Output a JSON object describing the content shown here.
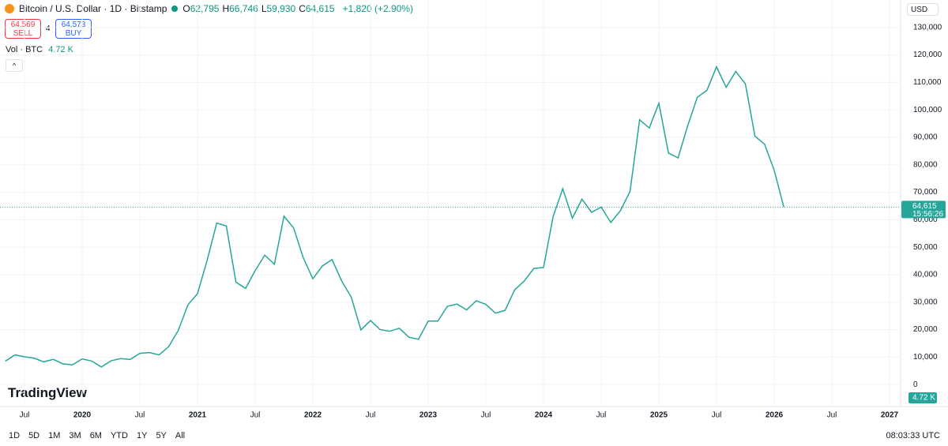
{
  "header": {
    "title": "Bitcoin / U.S. Dollar · 1D · Bitstamp",
    "ohlc": [
      {
        "label": "O",
        "value": "62,795"
      },
      {
        "label": "H",
        "value": "66,746"
      },
      {
        "label": "L",
        "value": "59,930"
      },
      {
        "label": "C",
        "value": "64,615"
      }
    ],
    "change": "+1,820 (+2.90%)",
    "sell": {
      "price": "64,569",
      "label": "SELL"
    },
    "spread": "4",
    "buy": {
      "price": "64,573",
      "label": "BUY"
    },
    "volume": {
      "label": "Vol · BTC",
      "value": "4.72 K"
    },
    "currency": "USD"
  },
  "logo": "TradingView",
  "chart_data": {
    "type": "line",
    "color": "#26a69a",
    "x": [
      "2019-05",
      "2019-06",
      "2019-07",
      "2019-08",
      "2019-09",
      "2019-10",
      "2019-11",
      "2019-12",
      "2020-01",
      "2020-02",
      "2020-03",
      "2020-04",
      "2020-05",
      "2020-06",
      "2020-07",
      "2020-08",
      "2020-09",
      "2020-10",
      "2020-11",
      "2020-12",
      "2021-01",
      "2021-02",
      "2021-03",
      "2021-04",
      "2021-05",
      "2021-06",
      "2021-07",
      "2021-08",
      "2021-09",
      "2021-10",
      "2021-11",
      "2021-12",
      "2022-01",
      "2022-02",
      "2022-03",
      "2022-04",
      "2022-05",
      "2022-06",
      "2022-07",
      "2022-08",
      "2022-09",
      "2022-10",
      "2022-11",
      "2022-12",
      "2023-01",
      "2023-02",
      "2023-03",
      "2023-04",
      "2023-05",
      "2023-06",
      "2023-07",
      "2023-08",
      "2023-09",
      "2023-10",
      "2023-11",
      "2023-12",
      "2024-01",
      "2024-02",
      "2024-03",
      "2024-04",
      "2024-05",
      "2024-06",
      "2024-07",
      "2024-08",
      "2024-09",
      "2024-10",
      "2024-11",
      "2024-12",
      "2025-01",
      "2025-02",
      "2025-03",
      "2025-04",
      "2025-05",
      "2025-06",
      "2025-07",
      "2025-08",
      "2025-09",
      "2025-10",
      "2025-11",
      "2025-12",
      "2026-01",
      "2026-02"
    ],
    "values": [
      8500,
      10800,
      10100,
      9600,
      8300,
      9150,
      7550,
      7200,
      9350,
      8550,
      6400,
      8650,
      9450,
      9150,
      11350,
      11650,
      10800,
      13800,
      19700,
      29000,
      33100,
      45200,
      58800,
      57700,
      37300,
      35000,
      41500,
      47100,
      43800,
      61300,
      57000,
      46200,
      38500,
      43200,
      45500,
      37700,
      31800,
      19900,
      23300,
      20000,
      19400,
      20500,
      17200,
      16500,
      23100,
      23100,
      28500,
      29300,
      27200,
      30500,
      29200,
      26000,
      27000,
      34500,
      37700,
      42300,
      42600,
      61200,
      71300,
      60600,
      67500,
      62700,
      64600,
      59000,
      63300,
      70300,
      96400,
      93400,
      102400,
      84300,
      82500,
      94200,
      104600,
      107100,
      115700,
      108200,
      114000,
      109500,
      90400,
      87500,
      78000,
      64615
    ],
    "ylim": [
      -8000,
      140000
    ],
    "yticks": [
      0,
      {
        "value": 10000,
        "label": "10,000"
      },
      {
        "value": 20000,
        "label": "20,000"
      },
      {
        "value": 30000,
        "label": "30,000"
      },
      {
        "value": 40000,
        "label": "40,000"
      },
      {
        "value": 50000,
        "label": "50,000"
      },
      {
        "value": 60000,
        "label": "60,000"
      },
      {
        "value": 70000,
        "label": "70,000"
      },
      {
        "value": 80000,
        "label": "80,000"
      },
      {
        "value": 90000,
        "label": "90,000"
      },
      {
        "value": 100000,
        "label": "100,000"
      },
      {
        "value": 110000,
        "label": "110,000"
      },
      {
        "value": 120000,
        "label": "120,000"
      },
      {
        "value": 130000,
        "label": "130,000"
      }
    ],
    "xticks": [
      {
        "value": "2019-07",
        "label": "Jul"
      },
      {
        "value": "2020-01",
        "label": "2020"
      },
      {
        "value": "2020-07",
        "label": "Jul"
      },
      {
        "value": "2021-01",
        "label": "2021"
      },
      {
        "value": "2021-07",
        "label": "Jul"
      },
      {
        "value": "2022-01",
        "label": "2022"
      },
      {
        "value": "2022-07",
        "label": "Jul"
      },
      {
        "value": "2023-01",
        "label": "2023"
      },
      {
        "value": "2023-07",
        "label": "Jul"
      },
      {
        "value": "2024-01",
        "label": "2024"
      },
      {
        "value": "2024-07",
        "label": "Jul"
      },
      {
        "value": "2025-01",
        "label": "2025"
      },
      {
        "value": "2025-07",
        "label": "Jul"
      },
      {
        "value": "2026-01",
        "label": "2026"
      },
      {
        "value": "2026-07",
        "label": "Jul"
      },
      {
        "value": "2027-01",
        "label": "2027"
      }
    ],
    "grid": true,
    "last_price": {
      "value": 64615,
      "label": "64,615",
      "countdown": "15:56:26"
    }
  },
  "toolbar": {
    "ranges": [
      "1D",
      "5D",
      "1M",
      "3M",
      "6M",
      "YTD",
      "1Y",
      "5Y",
      "All"
    ],
    "time": "08:03:33 UTC"
  }
}
